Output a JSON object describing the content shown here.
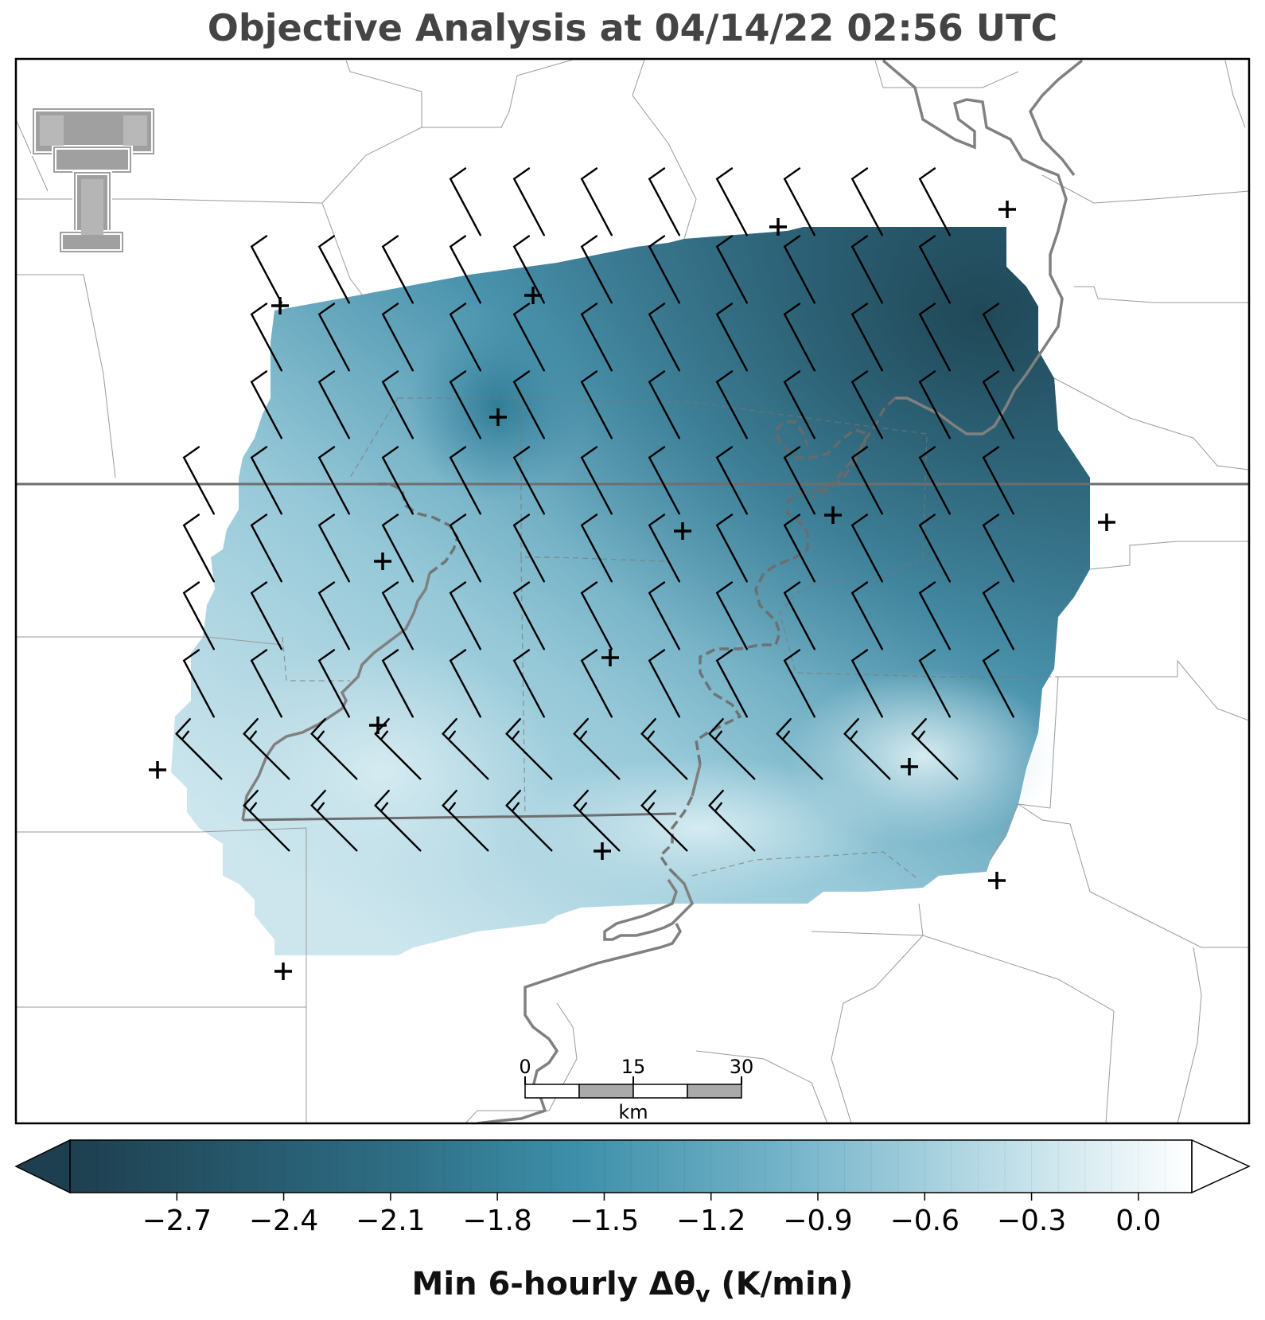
{
  "title": "Objective Analysis at 04/14/22 02:56 UTC",
  "colorbar": {
    "label_main": "Min 6-hourly Δθ",
    "label_sub": "v",
    "label_units": " (K/min)",
    "vmin": -3.0,
    "vmax": 0.15,
    "ticks": [
      "−2.7",
      "−2.4",
      "−2.1",
      "−1.8",
      "−1.5",
      "−1.2",
      "−0.9",
      "−0.6",
      "−0.3",
      "0.0"
    ],
    "tick_values": [
      -2.7,
      -2.4,
      -2.1,
      -1.8,
      -1.5,
      -1.2,
      -0.9,
      -0.6,
      -0.3,
      0.0
    ],
    "extend": "both",
    "colors": [
      "#1e3f4f",
      "#2f6f86",
      "#3d8fa9",
      "#78b6cb",
      "#b9dbe6",
      "#ffffff"
    ]
  },
  "scale_bar": {
    "labels": [
      "0",
      "15",
      "30"
    ],
    "unit": "km"
  },
  "logo": {
    "name": "Texas Tech Double T",
    "color": "#a0a0a0"
  },
  "field_colors": {
    "dark": "#24495a",
    "mid": "#3c87a3",
    "light": "#c6e2ea"
  },
  "map_style": {
    "border_color": "#777777",
    "county_color": "#9a9a9a",
    "river_color": "#808080",
    "station_marker": "+"
  }
}
